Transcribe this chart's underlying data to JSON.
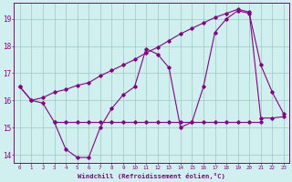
{
  "xlabel": "Windchill (Refroidissement éolien,°C)",
  "bg_color": "#cff0ee",
  "line_color": "#880088",
  "grid_color": "#99ccbb",
  "xlim": [
    -0.5,
    23.5
  ],
  "ylim": [
    13.7,
    19.6
  ],
  "yticks": [
    14,
    15,
    16,
    17,
    18,
    19
  ],
  "xticks": [
    0,
    1,
    2,
    3,
    4,
    5,
    6,
    7,
    8,
    9,
    10,
    11,
    12,
    13,
    14,
    15,
    16,
    17,
    18,
    19,
    20,
    21,
    22,
    23
  ],
  "series1_x": [
    0,
    1,
    2,
    3,
    4,
    5,
    6,
    7,
    8,
    9,
    10,
    11,
    12,
    13,
    14,
    15,
    16,
    17,
    18,
    19,
    20,
    21,
    22,
    23
  ],
  "series1_y": [
    16.5,
    16.0,
    15.9,
    15.2,
    14.2,
    13.9,
    13.9,
    15.0,
    15.7,
    16.2,
    16.5,
    17.9,
    17.7,
    17.2,
    15.0,
    15.2,
    16.5,
    18.5,
    19.0,
    19.3,
    19.2,
    17.3,
    16.3,
    15.5
  ],
  "series2_x": [
    3,
    4,
    5,
    6,
    7,
    8,
    9,
    10,
    11,
    12,
    13,
    14,
    15,
    16,
    17,
    18,
    19,
    20,
    21
  ],
  "series2_y": [
    15.2,
    15.2,
    15.2,
    15.2,
    15.2,
    15.2,
    15.2,
    15.2,
    15.2,
    15.2,
    15.2,
    15.2,
    15.2,
    15.2,
    15.2,
    15.2,
    15.2,
    15.2,
    15.2
  ],
  "series3_x": [
    0,
    1,
    2,
    3,
    4,
    5,
    6,
    7,
    8,
    9,
    10,
    11,
    12,
    13,
    14,
    15,
    16,
    17,
    18,
    19,
    20,
    21,
    22,
    23
  ],
  "series3_y": [
    16.5,
    16.0,
    16.1,
    16.3,
    16.4,
    16.55,
    16.65,
    16.9,
    17.1,
    17.3,
    17.5,
    17.75,
    17.95,
    18.2,
    18.45,
    18.65,
    18.85,
    19.05,
    19.2,
    19.35,
    19.25,
    15.35,
    15.35,
    15.4
  ]
}
